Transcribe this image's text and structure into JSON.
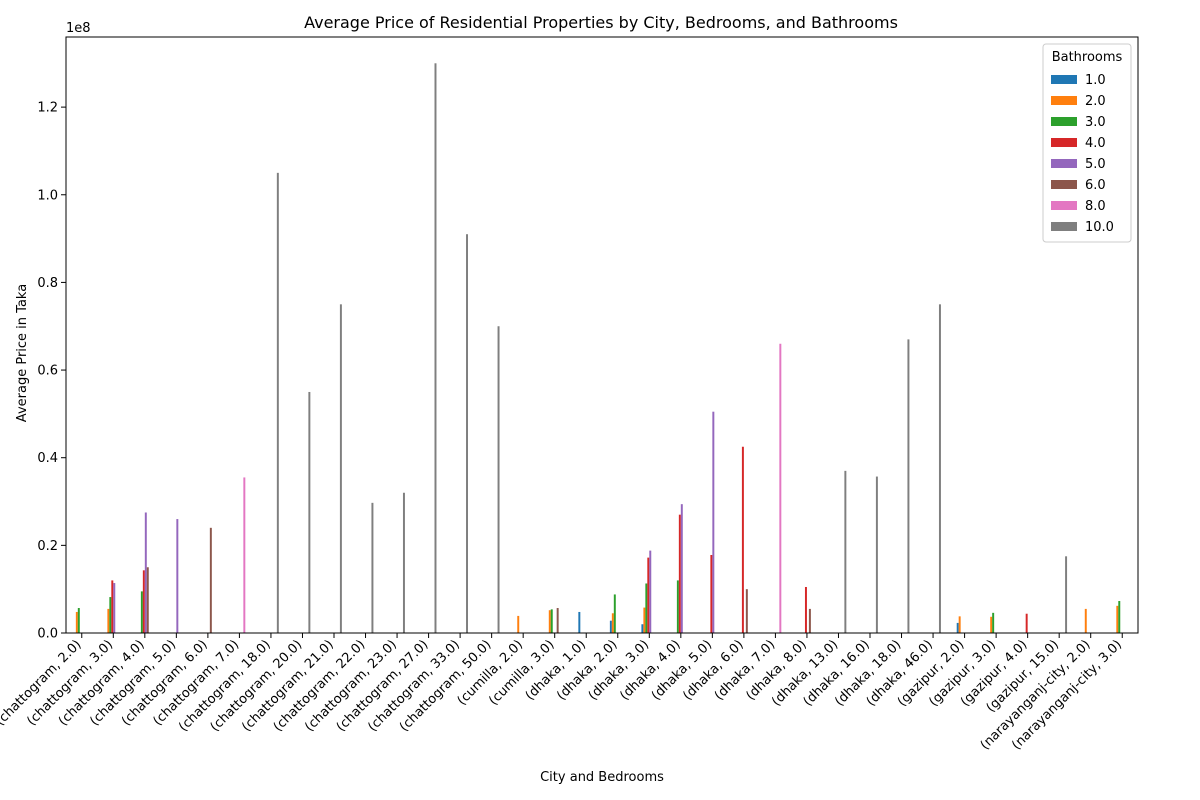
{
  "chart_data": {
    "type": "bar",
    "title": "Average Price of Residential Properties by City, Bedrooms, and Bathrooms",
    "xlabel": "City and Bedrooms",
    "ylabel": "Average Price in Taka",
    "y_offset_label": "1e8",
    "ylim": [
      0,
      136000000
    ],
    "yticks": [
      0,
      20000000,
      40000000,
      60000000,
      80000000,
      100000000,
      120000000
    ],
    "ytick_labels": [
      "0.0",
      "0.2",
      "0.4",
      "0.6",
      "0.8",
      "1.0",
      "1.2"
    ],
    "grid": false,
    "legend": {
      "title": "Bathrooms",
      "placement": "top-right"
    },
    "categories": [
      "(chattogram, 2.0)",
      "(chattogram, 3.0)",
      "(chattogram, 4.0)",
      "(chattogram, 5.0)",
      "(chattogram, 6.0)",
      "(chattogram, 7.0)",
      "(chattogram, 18.0)",
      "(chattogram, 20.0)",
      "(chattogram, 21.0)",
      "(chattogram, 22.0)",
      "(chattogram, 23.0)",
      "(chattogram, 27.0)",
      "(chattogram, 33.0)",
      "(chattogram, 50.0)",
      "(cumilla, 2.0)",
      "(cumilla, 3.0)",
      "(dhaka, 1.0)",
      "(dhaka, 2.0)",
      "(dhaka, 3.0)",
      "(dhaka, 4.0)",
      "(dhaka, 5.0)",
      "(dhaka, 6.0)",
      "(dhaka, 7.0)",
      "(dhaka, 8.0)",
      "(dhaka, 13.0)",
      "(dhaka, 16.0)",
      "(dhaka, 18.0)",
      "(dhaka, 46.0)",
      "(gazipur, 2.0)",
      "(gazipur, 3.0)",
      "(gazipur, 4.0)",
      "(gazipur, 15.0)",
      "(narayanganj-city, 2.0)",
      "(narayanganj-city, 3.0)"
    ],
    "series": [
      {
        "name": "1.0",
        "color": "#1f77b4",
        "values": [
          null,
          null,
          null,
          null,
          null,
          null,
          null,
          null,
          null,
          null,
          null,
          null,
          null,
          null,
          null,
          null,
          4800000,
          2800000,
          2000000,
          null,
          null,
          null,
          null,
          null,
          null,
          null,
          null,
          null,
          2300000,
          null,
          null,
          null,
          null,
          null
        ]
      },
      {
        "name": "2.0",
        "color": "#ff7f0e",
        "values": [
          4800000,
          5500000,
          null,
          null,
          null,
          null,
          null,
          null,
          null,
          null,
          null,
          null,
          null,
          null,
          3900000,
          5200000,
          null,
          4500000,
          5800000,
          null,
          null,
          null,
          null,
          null,
          null,
          null,
          null,
          null,
          3800000,
          3700000,
          null,
          null,
          5500000,
          6200000
        ]
      },
      {
        "name": "3.0",
        "color": "#2ca02c",
        "values": [
          5700000,
          8200000,
          9500000,
          null,
          null,
          null,
          null,
          null,
          null,
          null,
          null,
          null,
          null,
          null,
          null,
          5400000,
          null,
          8800000,
          11300000,
          12000000,
          null,
          null,
          null,
          null,
          null,
          null,
          null,
          null,
          null,
          4600000,
          null,
          null,
          null,
          7300000
        ]
      },
      {
        "name": "4.0",
        "color": "#d62728",
        "values": [
          null,
          12000000,
          14300000,
          null,
          null,
          null,
          null,
          null,
          null,
          null,
          null,
          null,
          null,
          null,
          null,
          null,
          null,
          null,
          17200000,
          27000000,
          17800000,
          42500000,
          null,
          10500000,
          null,
          null,
          null,
          null,
          null,
          null,
          4400000,
          null,
          null,
          null
        ]
      },
      {
        "name": "5.0",
        "color": "#9467bd",
        "values": [
          null,
          11400000,
          27500000,
          26000000,
          null,
          null,
          null,
          null,
          null,
          null,
          null,
          null,
          null,
          null,
          null,
          null,
          null,
          null,
          18800000,
          29400000,
          50500000,
          null,
          null,
          null,
          null,
          null,
          null,
          null,
          null,
          null,
          null,
          null,
          null,
          null
        ]
      },
      {
        "name": "6.0",
        "color": "#8c564b",
        "values": [
          null,
          null,
          15000000,
          null,
          24000000,
          null,
          null,
          null,
          null,
          null,
          null,
          null,
          null,
          null,
          null,
          5700000,
          null,
          null,
          null,
          null,
          null,
          10000000,
          null,
          5500000,
          null,
          null,
          null,
          null,
          null,
          null,
          null,
          null,
          null,
          null
        ]
      },
      {
        "name": "8.0",
        "color": "#e377c2",
        "values": [
          null,
          null,
          null,
          null,
          null,
          35500000,
          null,
          null,
          null,
          null,
          null,
          null,
          null,
          null,
          null,
          null,
          null,
          null,
          null,
          null,
          null,
          null,
          66000000,
          null,
          null,
          null,
          null,
          null,
          null,
          null,
          null,
          null,
          null,
          null
        ]
      },
      {
        "name": "10.0",
        "color": "#7f7f7f",
        "values": [
          null,
          null,
          null,
          null,
          null,
          null,
          105000000,
          55000000,
          75000000,
          29700000,
          32000000,
          130000000,
          91000000,
          70000000,
          null,
          null,
          null,
          null,
          null,
          null,
          null,
          null,
          null,
          null,
          37000000,
          35700000,
          67000000,
          75000000,
          null,
          null,
          null,
          17500000,
          null,
          null
        ]
      }
    ]
  }
}
